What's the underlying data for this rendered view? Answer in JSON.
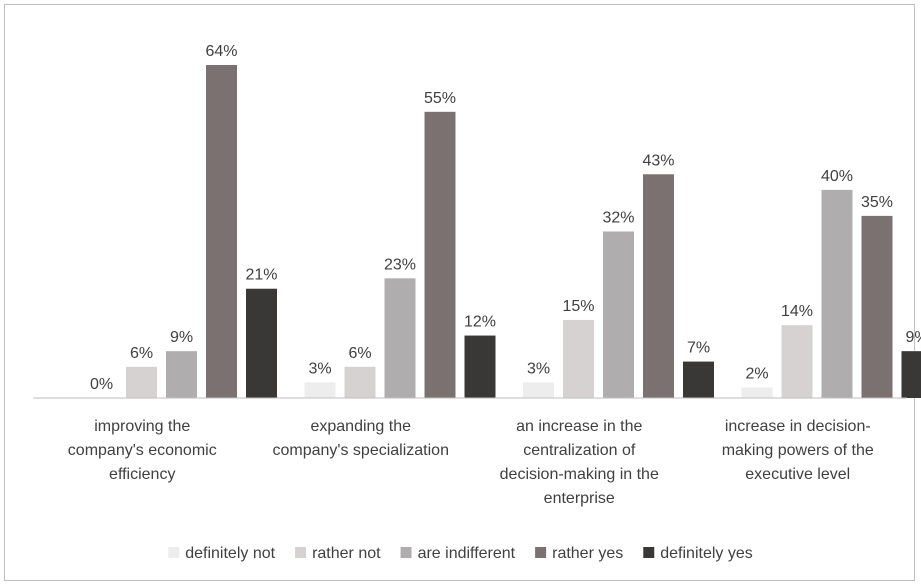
{
  "chart_data": {
    "type": "bar",
    "title": "",
    "xlabel": "",
    "ylabel": "",
    "ylim": [
      0,
      70
    ],
    "grid": false,
    "legend_position": "bottom",
    "value_suffix": "%",
    "categories": [
      [
        "improving the",
        "company's economic",
        "efficiency"
      ],
      [
        "expanding the",
        "company's specialization"
      ],
      [
        "an increase in the",
        "centralization of",
        "decision-making in the",
        "enterprise"
      ],
      [
        "increase in decision-",
        "making powers of the",
        "executive level"
      ]
    ],
    "series": [
      {
        "name": "definitely not",
        "color": "#ededed",
        "values": [
          0,
          3,
          3,
          2
        ]
      },
      {
        "name": "rather not",
        "color": "#d6d2d2",
        "values": [
          6,
          6,
          15,
          14
        ]
      },
      {
        "name": "are indifferent",
        "color": "#afadad",
        "values": [
          9,
          23,
          32,
          40
        ]
      },
      {
        "name": "rather yes",
        "color": "#7b7170",
        "values": [
          64,
          55,
          43,
          35
        ]
      },
      {
        "name": "definitely yes",
        "color": "#3a3737",
        "values": [
          21,
          12,
          7,
          9
        ]
      }
    ]
  }
}
